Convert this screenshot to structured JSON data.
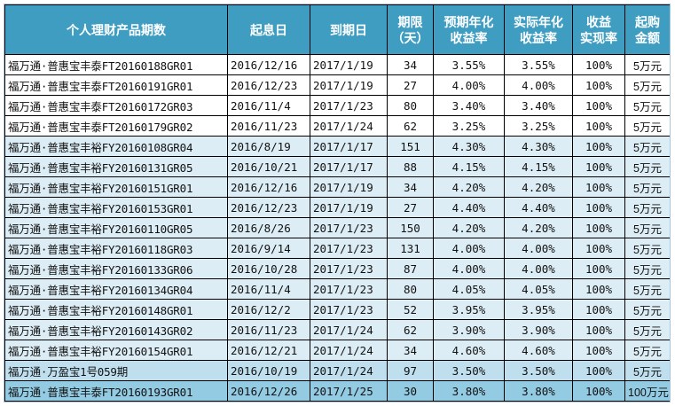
{
  "table": {
    "headers": {
      "name": "个人理财产品期数",
      "start": "起息日",
      "end": "到期日",
      "term_line1": "期限",
      "term_line2": "（天）",
      "expected_line1": "预期年化",
      "expected_line2": "收益率",
      "actual_line1": "实际年化",
      "actual_line2": "收益率",
      "realization_line1": "收益",
      "realization_line2": "实现率",
      "min_line1": "起购",
      "min_line2": "金额"
    },
    "rows": [
      {
        "name": "福万通·普惠宝丰泰FT20160188GR01",
        "start": "2016/12/16",
        "end": "2017/1/19",
        "term": "34",
        "expected": "3.55%",
        "actual": "3.55%",
        "realization": "100%",
        "min": "5万元"
      },
      {
        "name": "福万通·普惠宝丰泰FT20160191GR01",
        "start": "2016/12/23",
        "end": "2017/1/19",
        "term": "27",
        "expected": "4.00%",
        "actual": "4.00%",
        "realization": "100%",
        "min": "5万元"
      },
      {
        "name": "福万通·普惠宝丰泰FT20160172GR03",
        "start": "2016/11/4",
        "end": "2017/1/23",
        "term": "80",
        "expected": "3.40%",
        "actual": "3.40%",
        "realization": "100%",
        "min": "5万元"
      },
      {
        "name": "福万通·普惠宝丰泰FT20160179GR02",
        "start": "2016/11/23",
        "end": "2017/1/24",
        "term": "62",
        "expected": "3.25%",
        "actual": "3.25%",
        "realization": "100%",
        "min": "5万元"
      },
      {
        "name": "福万通·普惠宝丰裕FY20160108GR04",
        "start": "2016/8/19",
        "end": "2017/1/17",
        "term": "151",
        "expected": "4.30%",
        "actual": "4.30%",
        "realization": "100%",
        "min": "5万元"
      },
      {
        "name": "福万通·普惠宝丰裕FY20160131GR05",
        "start": "2016/10/21",
        "end": "2017/1/17",
        "term": "88",
        "expected": "4.15%",
        "actual": "4.15%",
        "realization": "100%",
        "min": "5万元"
      },
      {
        "name": "福万通·普惠宝丰裕FY20160151GR01",
        "start": "2016/12/16",
        "end": "2017/1/19",
        "term": "34",
        "expected": "4.20%",
        "actual": "4.20%",
        "realization": "100%",
        "min": "5万元"
      },
      {
        "name": "福万通·普惠宝丰裕FY20160153GR01",
        "start": "2016/12/23",
        "end": "2017/1/19",
        "term": "27",
        "expected": "4.40%",
        "actual": "4.40%",
        "realization": "100%",
        "min": "5万元"
      },
      {
        "name": "福万通·普惠宝丰裕FY20160110GR05",
        "start": "2016/8/26",
        "end": "2017/1/23",
        "term": "150",
        "expected": "4.20%",
        "actual": "4.20%",
        "realization": "100%",
        "min": "5万元"
      },
      {
        "name": "福万通·普惠宝丰裕FY20160118GR03",
        "start": "2016/9/14",
        "end": "2017/1/23",
        "term": "131",
        "expected": "4.00%",
        "actual": "4.00%",
        "realization": "100%",
        "min": "5万元"
      },
      {
        "name": "福万通·普惠宝丰裕FY20160133GR06",
        "start": "2016/10/28",
        "end": "2017/1/23",
        "term": "87",
        "expected": "4.00%",
        "actual": "4.00%",
        "realization": "100%",
        "min": "5万元"
      },
      {
        "name": "福万通·普惠宝丰裕FY20160134GR04",
        "start": "2016/11/4",
        "end": "2017/1/23",
        "term": "80",
        "expected": "4.05%",
        "actual": "4.05%",
        "realization": "100%",
        "min": "5万元"
      },
      {
        "name": "福万通·普惠宝丰裕FY20160148GR01",
        "start": "2016/12/2",
        "end": "2017/1/23",
        "term": "52",
        "expected": "3.95%",
        "actual": "3.95%",
        "realization": "100%",
        "min": "5万元"
      },
      {
        "name": "福万通·普惠宝丰裕FY20160143GR02",
        "start": "2016/11/23",
        "end": "2017/1/24",
        "term": "62",
        "expected": "3.90%",
        "actual": "3.90%",
        "realization": "100%",
        "min": "5万元"
      },
      {
        "name": "福万通·普惠宝丰裕FY20160154GR01",
        "start": "2016/12/21",
        "end": "2017/1/24",
        "term": "34",
        "expected": "4.60%",
        "actual": "4.60%",
        "realization": "100%",
        "min": "5万元"
      },
      {
        "name": "福万通·万盈宝1号059期",
        "start": "2016/10/19",
        "end": "2017/1/24",
        "term": "97",
        "expected": "3.50%",
        "actual": "3.50%",
        "realization": "100%",
        "min": "5万元"
      },
      {
        "name": "福万通·普惠宝丰泰FT20160193GR01",
        "start": "2016/12/26",
        "end": "2017/1/25",
        "term": "30",
        "expected": "3.80%",
        "actual": "3.80%",
        "realization": "100%",
        "min": "100万元"
      }
    ],
    "colors": {
      "header_bg": "#3e9dc1",
      "row_white": "#ffffff",
      "row_light": "#ddedf5",
      "row_mid": "#bfdfee",
      "row_dark": "#93cbe2",
      "border": "#000000"
    }
  }
}
